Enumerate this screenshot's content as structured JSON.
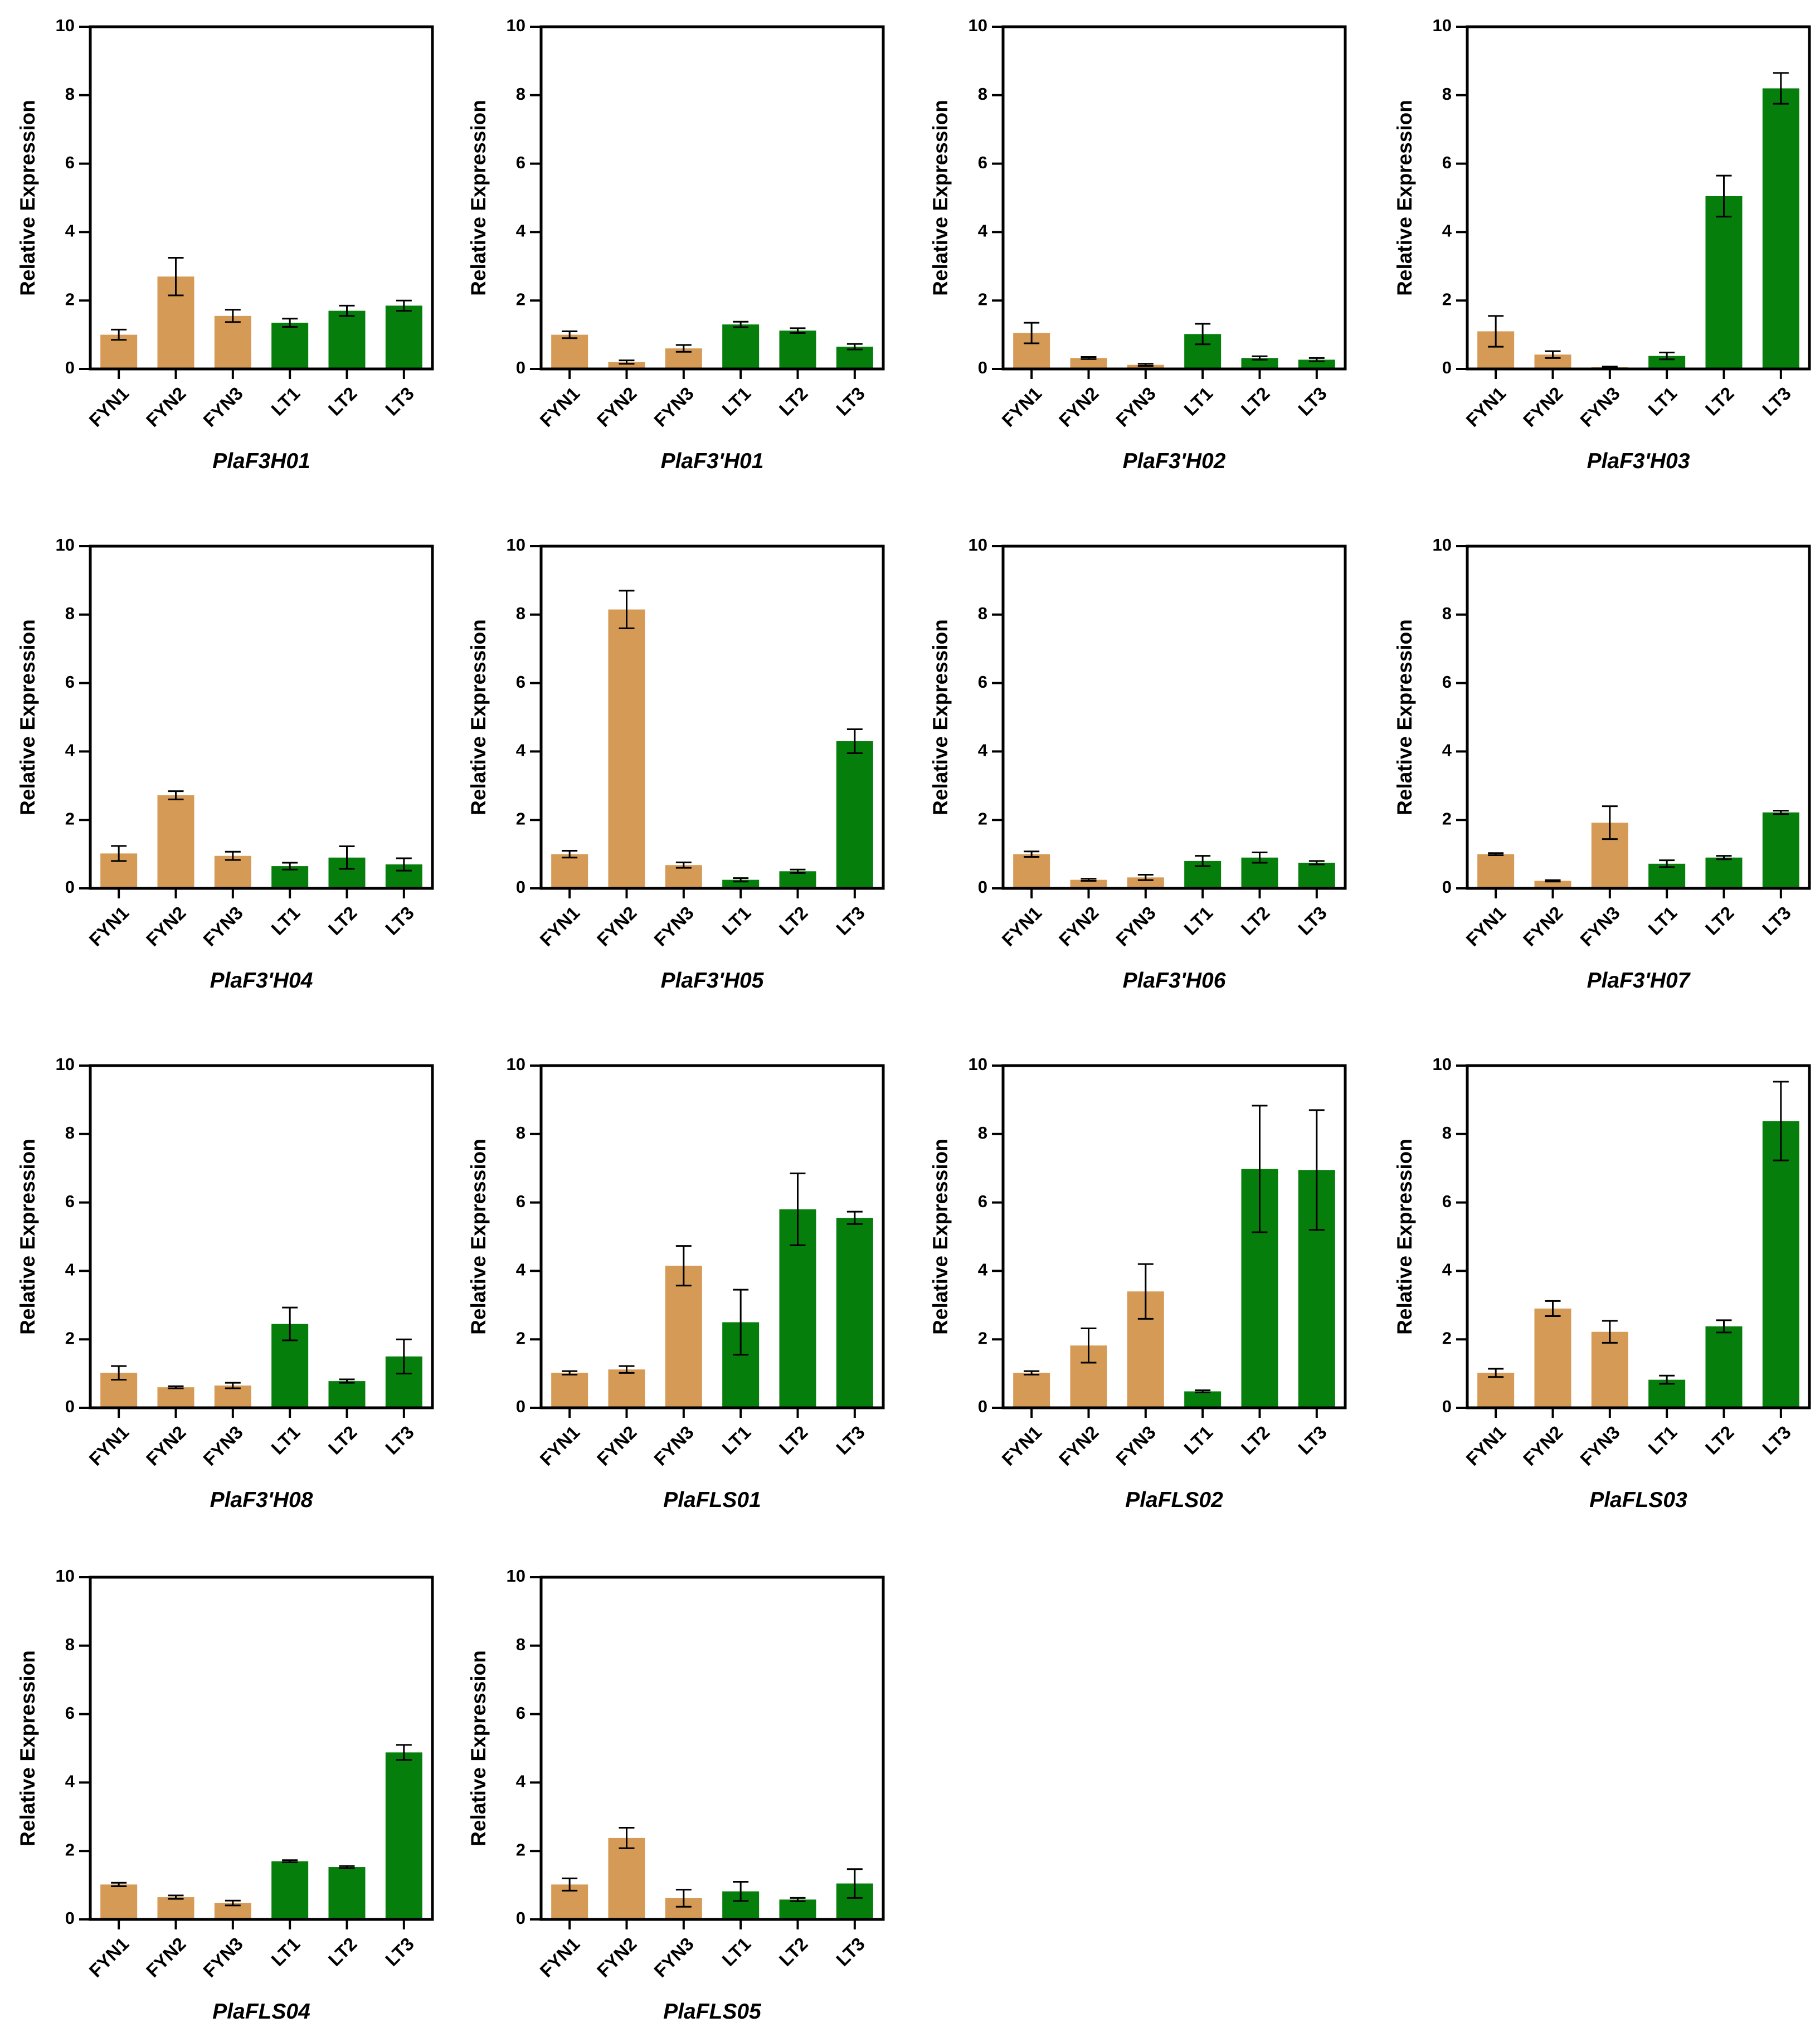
{
  "colors": {
    "FYN": "#D59A55",
    "LT": "#067E0C",
    "axis": "#000000",
    "background": "#FFFFFF"
  },
  "chart_data": [
    {
      "type": "bar",
      "title": "PlaF3H01",
      "xlabel": "",
      "ylabel": "Relative Expression",
      "ylim": [
        0,
        10
      ],
      "yticks": [
        0,
        2,
        4,
        6,
        8,
        10
      ],
      "categories": [
        "FYN1",
        "FYN2",
        "FYN3",
        "LT1",
        "LT2",
        "LT3"
      ],
      "values": [
        1.0,
        2.7,
        1.55,
        1.35,
        1.7,
        1.85
      ],
      "errors": [
        0.15,
        0.55,
        0.18,
        0.12,
        0.15,
        0.15
      ]
    },
    {
      "type": "bar",
      "title": "PlaF3'H01",
      "xlabel": "",
      "ylabel": "Relative Expression",
      "ylim": [
        0,
        10
      ],
      "yticks": [
        0,
        2,
        4,
        6,
        8,
        10
      ],
      "categories": [
        "FYN1",
        "FYN2",
        "FYN3",
        "LT1",
        "LT2",
        "LT3"
      ],
      "values": [
        1.0,
        0.2,
        0.6,
        1.3,
        1.12,
        0.65
      ],
      "errors": [
        0.1,
        0.05,
        0.1,
        0.08,
        0.07,
        0.08
      ]
    },
    {
      "type": "bar",
      "title": "PlaF3'H02",
      "xlabel": "",
      "ylabel": "Relative Expression",
      "ylim": [
        0,
        10
      ],
      "yticks": [
        0,
        2,
        4,
        6,
        8,
        10
      ],
      "categories": [
        "FYN1",
        "FYN2",
        "FYN3",
        "LT1",
        "LT2",
        "LT3"
      ],
      "values": [
        1.05,
        0.32,
        0.12,
        1.02,
        0.32,
        0.27
      ],
      "errors": [
        0.3,
        0.03,
        0.03,
        0.3,
        0.05,
        0.05
      ]
    },
    {
      "type": "bar",
      "title": "PlaF3'H03",
      "xlabel": "",
      "ylabel": "Relative Expression",
      "ylim": [
        0,
        10
      ],
      "yticks": [
        0,
        2,
        4,
        6,
        8,
        10
      ],
      "categories": [
        "FYN1",
        "FYN2",
        "FYN3",
        "LT1",
        "LT2",
        "LT3"
      ],
      "values": [
        1.1,
        0.42,
        0.05,
        0.38,
        5.05,
        8.2
      ],
      "errors": [
        0.45,
        0.1,
        0.02,
        0.1,
        0.6,
        0.45
      ]
    },
    {
      "type": "bar",
      "title": "PlaF3'H04",
      "xlabel": "",
      "ylabel": "Relative Expression",
      "ylim": [
        0,
        10
      ],
      "yticks": [
        0,
        2,
        4,
        6,
        8,
        10
      ],
      "categories": [
        "FYN1",
        "FYN2",
        "FYN3",
        "LT1",
        "LT2",
        "LT3"
      ],
      "values": [
        1.02,
        2.72,
        0.95,
        0.65,
        0.9,
        0.7
      ],
      "errors": [
        0.22,
        0.12,
        0.12,
        0.1,
        0.33,
        0.18
      ]
    },
    {
      "type": "bar",
      "title": "PlaF3'H05",
      "xlabel": "",
      "ylabel": "Relative Expression",
      "ylim": [
        0,
        10
      ],
      "yticks": [
        0,
        2,
        4,
        6,
        8,
        10
      ],
      "categories": [
        "FYN1",
        "FYN2",
        "FYN3",
        "LT1",
        "LT2",
        "LT3"
      ],
      "values": [
        1.0,
        8.15,
        0.68,
        0.25,
        0.5,
        4.3
      ],
      "errors": [
        0.1,
        0.55,
        0.08,
        0.05,
        0.05,
        0.35
      ]
    },
    {
      "type": "bar",
      "title": "PlaF3'H06",
      "xlabel": "",
      "ylabel": "Relative Expression",
      "ylim": [
        0,
        10
      ],
      "yticks": [
        0,
        2,
        4,
        6,
        8,
        10
      ],
      "categories": [
        "FYN1",
        "FYN2",
        "FYN3",
        "LT1",
        "LT2",
        "LT3"
      ],
      "values": [
        1.0,
        0.25,
        0.32,
        0.8,
        0.9,
        0.75
      ],
      "errors": [
        0.08,
        0.03,
        0.08,
        0.15,
        0.15,
        0.05
      ]
    },
    {
      "type": "bar",
      "title": "PlaF3'H07",
      "xlabel": "",
      "ylabel": "Relative Expression",
      "ylim": [
        0,
        10
      ],
      "yticks": [
        0,
        2,
        4,
        6,
        8,
        10
      ],
      "categories": [
        "FYN1",
        "FYN2",
        "FYN3",
        "LT1",
        "LT2",
        "LT3"
      ],
      "values": [
        1.0,
        0.22,
        1.92,
        0.72,
        0.9,
        2.22
      ],
      "errors": [
        0.03,
        0.02,
        0.48,
        0.1,
        0.05,
        0.05
      ]
    },
    {
      "type": "bar",
      "title": "PlaF3'H08",
      "xlabel": "",
      "ylabel": "Relative Expression",
      "ylim": [
        0,
        10
      ],
      "yticks": [
        0,
        2,
        4,
        6,
        8,
        10
      ],
      "categories": [
        "FYN1",
        "FYN2",
        "FYN3",
        "LT1",
        "LT2",
        "LT3"
      ],
      "values": [
        1.02,
        0.6,
        0.65,
        2.45,
        0.78,
        1.5
      ],
      "errors": [
        0.2,
        0.03,
        0.08,
        0.48,
        0.05,
        0.5
      ]
    },
    {
      "type": "bar",
      "title": "PlaFLS01",
      "xlabel": "",
      "ylabel": "Relative Expression",
      "ylim": [
        0,
        10
      ],
      "yticks": [
        0,
        2,
        4,
        6,
        8,
        10
      ],
      "categories": [
        "FYN1",
        "FYN2",
        "FYN3",
        "LT1",
        "LT2",
        "LT3"
      ],
      "values": [
        1.02,
        1.12,
        4.15,
        2.5,
        5.8,
        5.55
      ],
      "errors": [
        0.05,
        0.1,
        0.58,
        0.95,
        1.05,
        0.18
      ]
    },
    {
      "type": "bar",
      "title": "PlaFLS02",
      "xlabel": "",
      "ylabel": "Relative Expression",
      "ylim": [
        0,
        10
      ],
      "yticks": [
        0,
        2,
        4,
        6,
        8,
        10
      ],
      "categories": [
        "FYN1",
        "FYN2",
        "FYN3",
        "LT1",
        "LT2",
        "LT3"
      ],
      "values": [
        1.02,
        1.82,
        3.4,
        0.48,
        6.98,
        6.95
      ],
      "errors": [
        0.05,
        0.5,
        0.8,
        0.03,
        1.85,
        1.75
      ]
    },
    {
      "type": "bar",
      "title": "PlaFLS03",
      "xlabel": "",
      "ylabel": "Relative Expression",
      "ylim": [
        0,
        10
      ],
      "yticks": [
        0,
        2,
        4,
        6,
        8,
        10
      ],
      "categories": [
        "FYN1",
        "FYN2",
        "FYN3",
        "LT1",
        "LT2",
        "LT3"
      ],
      "values": [
        1.02,
        2.9,
        2.22,
        0.82,
        2.38,
        8.38
      ],
      "errors": [
        0.12,
        0.22,
        0.32,
        0.12,
        0.18,
        1.15
      ]
    },
    {
      "type": "bar",
      "title": "PlaFLS04",
      "xlabel": "",
      "ylabel": "Relative Expression",
      "ylim": [
        0,
        10
      ],
      "yticks": [
        0,
        2,
        4,
        6,
        8,
        10
      ],
      "categories": [
        "FYN1",
        "FYN2",
        "FYN3",
        "LT1",
        "LT2",
        "LT3"
      ],
      "values": [
        1.02,
        0.65,
        0.48,
        1.7,
        1.53,
        4.88
      ],
      "errors": [
        0.05,
        0.05,
        0.07,
        0.03,
        0.03,
        0.22
      ]
    },
    {
      "type": "bar",
      "title": "PlaFLS05",
      "xlabel": "",
      "ylabel": "Relative Expression",
      "ylim": [
        0,
        10
      ],
      "yticks": [
        0,
        2,
        4,
        6,
        8,
        10
      ],
      "categories": [
        "FYN1",
        "FYN2",
        "FYN3",
        "LT1",
        "LT2",
        "LT3"
      ],
      "values": [
        1.02,
        2.38,
        0.62,
        0.82,
        0.58,
        1.05
      ],
      "errors": [
        0.18,
        0.3,
        0.25,
        0.28,
        0.05,
        0.42
      ]
    }
  ]
}
